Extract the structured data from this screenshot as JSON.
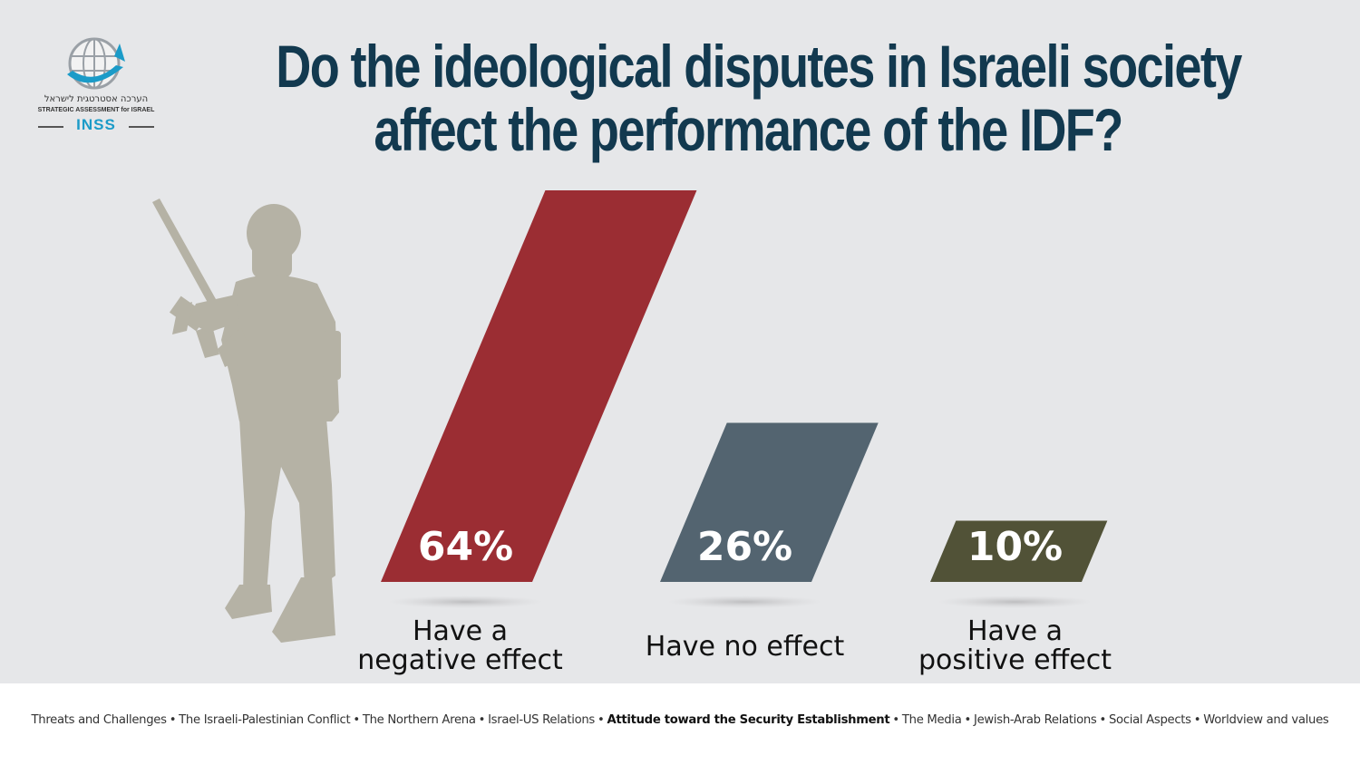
{
  "logo": {
    "hebrew": "הערכה אסטרטגית לישראל",
    "english": "STRATEGIC ASSESSMENT for ISRAEL",
    "brand": "INSS",
    "icon": "globe-icon"
  },
  "chart_data": {
    "type": "bar",
    "title_lines": [
      "Do the ideological disputes in Israeli society",
      "affect the performance of the IDF?"
    ],
    "categories": [
      "Have a negative effect",
      "Have no effect",
      "Have a positive effect"
    ],
    "category_lines": [
      [
        "Have a",
        "negative effect"
      ],
      [
        "Have no effect"
      ],
      [
        "Have a",
        "positive effect"
      ]
    ],
    "values": [
      64,
      26,
      10
    ],
    "value_labels": [
      "64%",
      "26%",
      "10%"
    ],
    "unit": "%",
    "colors": [
      "#9b2d33",
      "#536470",
      "#515237"
    ],
    "ylim": [
      0,
      64
    ],
    "grid": false,
    "legend": "none"
  },
  "footer": {
    "items": [
      {
        "label": "Threats and Challenges",
        "active": false
      },
      {
        "label": "The Israeli-Palestinian Conflict",
        "active": false
      },
      {
        "label": "The Northern  Arena",
        "active": false
      },
      {
        "label": "Israel-US Relations",
        "active": false
      },
      {
        "label": "Attitude toward the Security Establishment",
        "active": true
      },
      {
        "label": "The Media",
        "active": false
      },
      {
        "label": "Jewish-Arab Relations",
        "active": false
      },
      {
        "label": "Social Aspects",
        "active": false
      },
      {
        "label": "Worldview and values",
        "active": false
      }
    ],
    "separator": "•"
  }
}
